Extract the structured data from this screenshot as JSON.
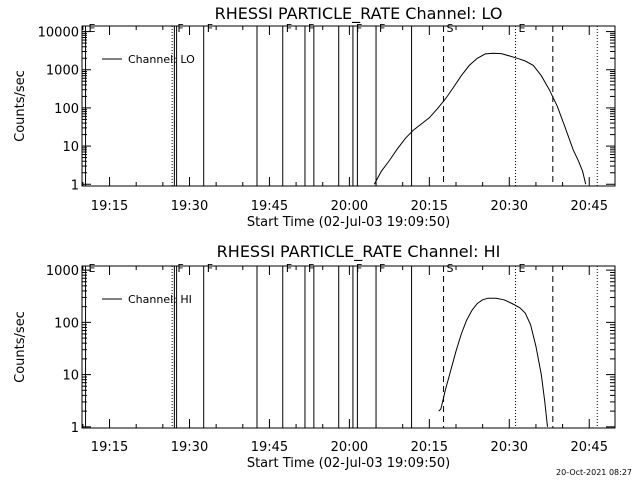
{
  "timestamp": "20-Oct-2021 08:27",
  "chart_data": [
    {
      "type": "line",
      "title": "RHESSI PARTICLE_RATE Channel: LO",
      "xlabel": "Start Time (02-Jul-03 19:09:50)",
      "ylabel": "Counts/sec",
      "yscale": "log",
      "x_range": [
        "19:09:50",
        "20:49:50"
      ],
      "ylim": [
        0.9,
        14000
      ],
      "x_ticks": [
        "19:15",
        "19:30",
        "19:45",
        "20:00",
        "20:15",
        "20:30",
        "20:45"
      ],
      "y_ticks": [
        {
          "value": 1,
          "label": "1"
        },
        {
          "value": 10,
          "label": "10"
        },
        {
          "value": 100,
          "label": "100"
        },
        {
          "value": 1000,
          "label": "1000"
        },
        {
          "value": 10000,
          "label": "10000"
        }
      ],
      "legend": {
        "entries": [
          "Channel: LO"
        ],
        "position": "top-left"
      },
      "series": [
        {
          "name": "Channel: LO",
          "points": [
            [
              "20:04:40",
              1
            ],
            [
              "20:06:00",
              2.2
            ],
            [
              "20:07:30",
              4.2
            ],
            [
              "20:09:00",
              8.5
            ],
            [
              "20:10:30",
              16
            ],
            [
              "20:12:00",
              26
            ],
            [
              "20:13:30",
              38
            ],
            [
              "20:15:00",
              55
            ],
            [
              "20:16:30",
              95
            ],
            [
              "20:18:00",
              170
            ],
            [
              "20:19:30",
              340
            ],
            [
              "20:21:00",
              700
            ],
            [
              "20:22:30",
              1300
            ],
            [
              "20:24:00",
              2000
            ],
            [
              "20:25:30",
              2600
            ],
            [
              "20:27:00",
              2700
            ],
            [
              "20:28:30",
              2650
            ],
            [
              "20:30:00",
              2300
            ],
            [
              "20:31:30",
              2000
            ],
            [
              "20:33:00",
              1700
            ],
            [
              "20:34:30",
              1300
            ],
            [
              "20:36:00",
              700
            ],
            [
              "20:37:30",
              300
            ],
            [
              "20:39:00",
              110
            ],
            [
              "20:40:30",
              30
            ],
            [
              "20:42:00",
              8
            ],
            [
              "20:43:00",
              4
            ],
            [
              "20:43:45",
              2.2
            ],
            [
              "20:44:20",
              1
            ]
          ]
        }
      ],
      "vertical_lines": [
        {
          "time": "19:10:30",
          "style": "solid",
          "label": "E"
        },
        {
          "time": "19:26:45",
          "style": "dotted",
          "label": ""
        },
        {
          "time": "19:27:10",
          "style": "solid",
          "label": "F"
        },
        {
          "time": "19:27:35",
          "style": "solid",
          "label": ""
        },
        {
          "time": "19:32:40",
          "style": "solid",
          "label": "F"
        },
        {
          "time": "19:42:40",
          "style": "solid",
          "label": ""
        },
        {
          "time": "19:47:30",
          "style": "solid",
          "label": "F"
        },
        {
          "time": "19:51:40",
          "style": "solid",
          "label": "F"
        },
        {
          "time": "19:53:20",
          "style": "solid",
          "label": ""
        },
        {
          "time": "19:58:00",
          "style": "solid",
          "label": ""
        },
        {
          "time": "20:00:40",
          "style": "solid",
          "label": "F"
        },
        {
          "time": "20:01:30",
          "style": "solid",
          "label": ""
        },
        {
          "time": "20:05:00",
          "style": "solid",
          "label": "F"
        },
        {
          "time": "20:11:40",
          "style": "solid",
          "label": ""
        },
        {
          "time": "20:17:40",
          "style": "dashed",
          "label": "S"
        },
        {
          "time": "20:31:10",
          "style": "dotted",
          "label": "E"
        },
        {
          "time": "20:38:10",
          "style": "dashed",
          "label": ""
        },
        {
          "time": "20:46:30",
          "style": "dotted",
          "label": ""
        }
      ]
    },
    {
      "type": "line",
      "title": "RHESSI PARTICLE_RATE Channel: HI",
      "xlabel": "Start Time (02-Jul-03 19:09:50)",
      "ylabel": "Counts/sec",
      "yscale": "log",
      "x_range": [
        "19:09:50",
        "20:49:50"
      ],
      "ylim": [
        0.95,
        1200
      ],
      "x_ticks": [
        "19:15",
        "19:30",
        "19:45",
        "20:00",
        "20:15",
        "20:30",
        "20:45"
      ],
      "y_ticks": [
        {
          "value": 1,
          "label": "1"
        },
        {
          "value": 10,
          "label": "10"
        },
        {
          "value": 100,
          "label": "100"
        },
        {
          "value": 1000,
          "label": "1000"
        }
      ],
      "legend": {
        "entries": [
          "Channel: HI"
        ],
        "position": "top-left"
      },
      "series": [
        {
          "name": "Channel: HI",
          "points": [
            [
              "20:16:45",
              2
            ],
            [
              "20:17:10",
              2.2
            ],
            [
              "20:18:00",
              5
            ],
            [
              "20:19:00",
              12
            ],
            [
              "20:20:00",
              28
            ],
            [
              "20:21:00",
              60
            ],
            [
              "20:22:00",
              110
            ],
            [
              "20:23:00",
              170
            ],
            [
              "20:24:00",
              230
            ],
            [
              "20:25:00",
              270
            ],
            [
              "20:26:00",
              290
            ],
            [
              "20:27:30",
              290
            ],
            [
              "20:29:00",
              270
            ],
            [
              "20:30:30",
              230
            ],
            [
              "20:32:00",
              190
            ],
            [
              "20:33:00",
              150
            ],
            [
              "20:34:00",
              90
            ],
            [
              "20:35:00",
              35
            ],
            [
              "20:36:00",
              10
            ],
            [
              "20:36:40",
              3
            ],
            [
              "20:37:10",
              1
            ]
          ]
        }
      ],
      "vertical_lines": [
        {
          "time": "19:10:30",
          "style": "solid",
          "label": "E"
        },
        {
          "time": "19:26:45",
          "style": "dotted",
          "label": ""
        },
        {
          "time": "19:27:10",
          "style": "solid",
          "label": "F"
        },
        {
          "time": "19:27:35",
          "style": "solid",
          "label": ""
        },
        {
          "time": "19:32:40",
          "style": "solid",
          "label": "F"
        },
        {
          "time": "19:42:40",
          "style": "solid",
          "label": ""
        },
        {
          "time": "19:47:30",
          "style": "solid",
          "label": "F"
        },
        {
          "time": "19:51:40",
          "style": "solid",
          "label": "F"
        },
        {
          "time": "19:53:20",
          "style": "solid",
          "label": ""
        },
        {
          "time": "19:58:00",
          "style": "solid",
          "label": ""
        },
        {
          "time": "20:00:40",
          "style": "solid",
          "label": "F"
        },
        {
          "time": "20:01:30",
          "style": "solid",
          "label": ""
        },
        {
          "time": "20:05:00",
          "style": "solid",
          "label": "F"
        },
        {
          "time": "20:11:40",
          "style": "solid",
          "label": ""
        },
        {
          "time": "20:17:40",
          "style": "dashed",
          "label": "S"
        },
        {
          "time": "20:31:10",
          "style": "dotted",
          "label": "E"
        },
        {
          "time": "20:38:10",
          "style": "dashed",
          "label": ""
        },
        {
          "time": "20:46:30",
          "style": "dotted",
          "label": ""
        }
      ]
    }
  ]
}
